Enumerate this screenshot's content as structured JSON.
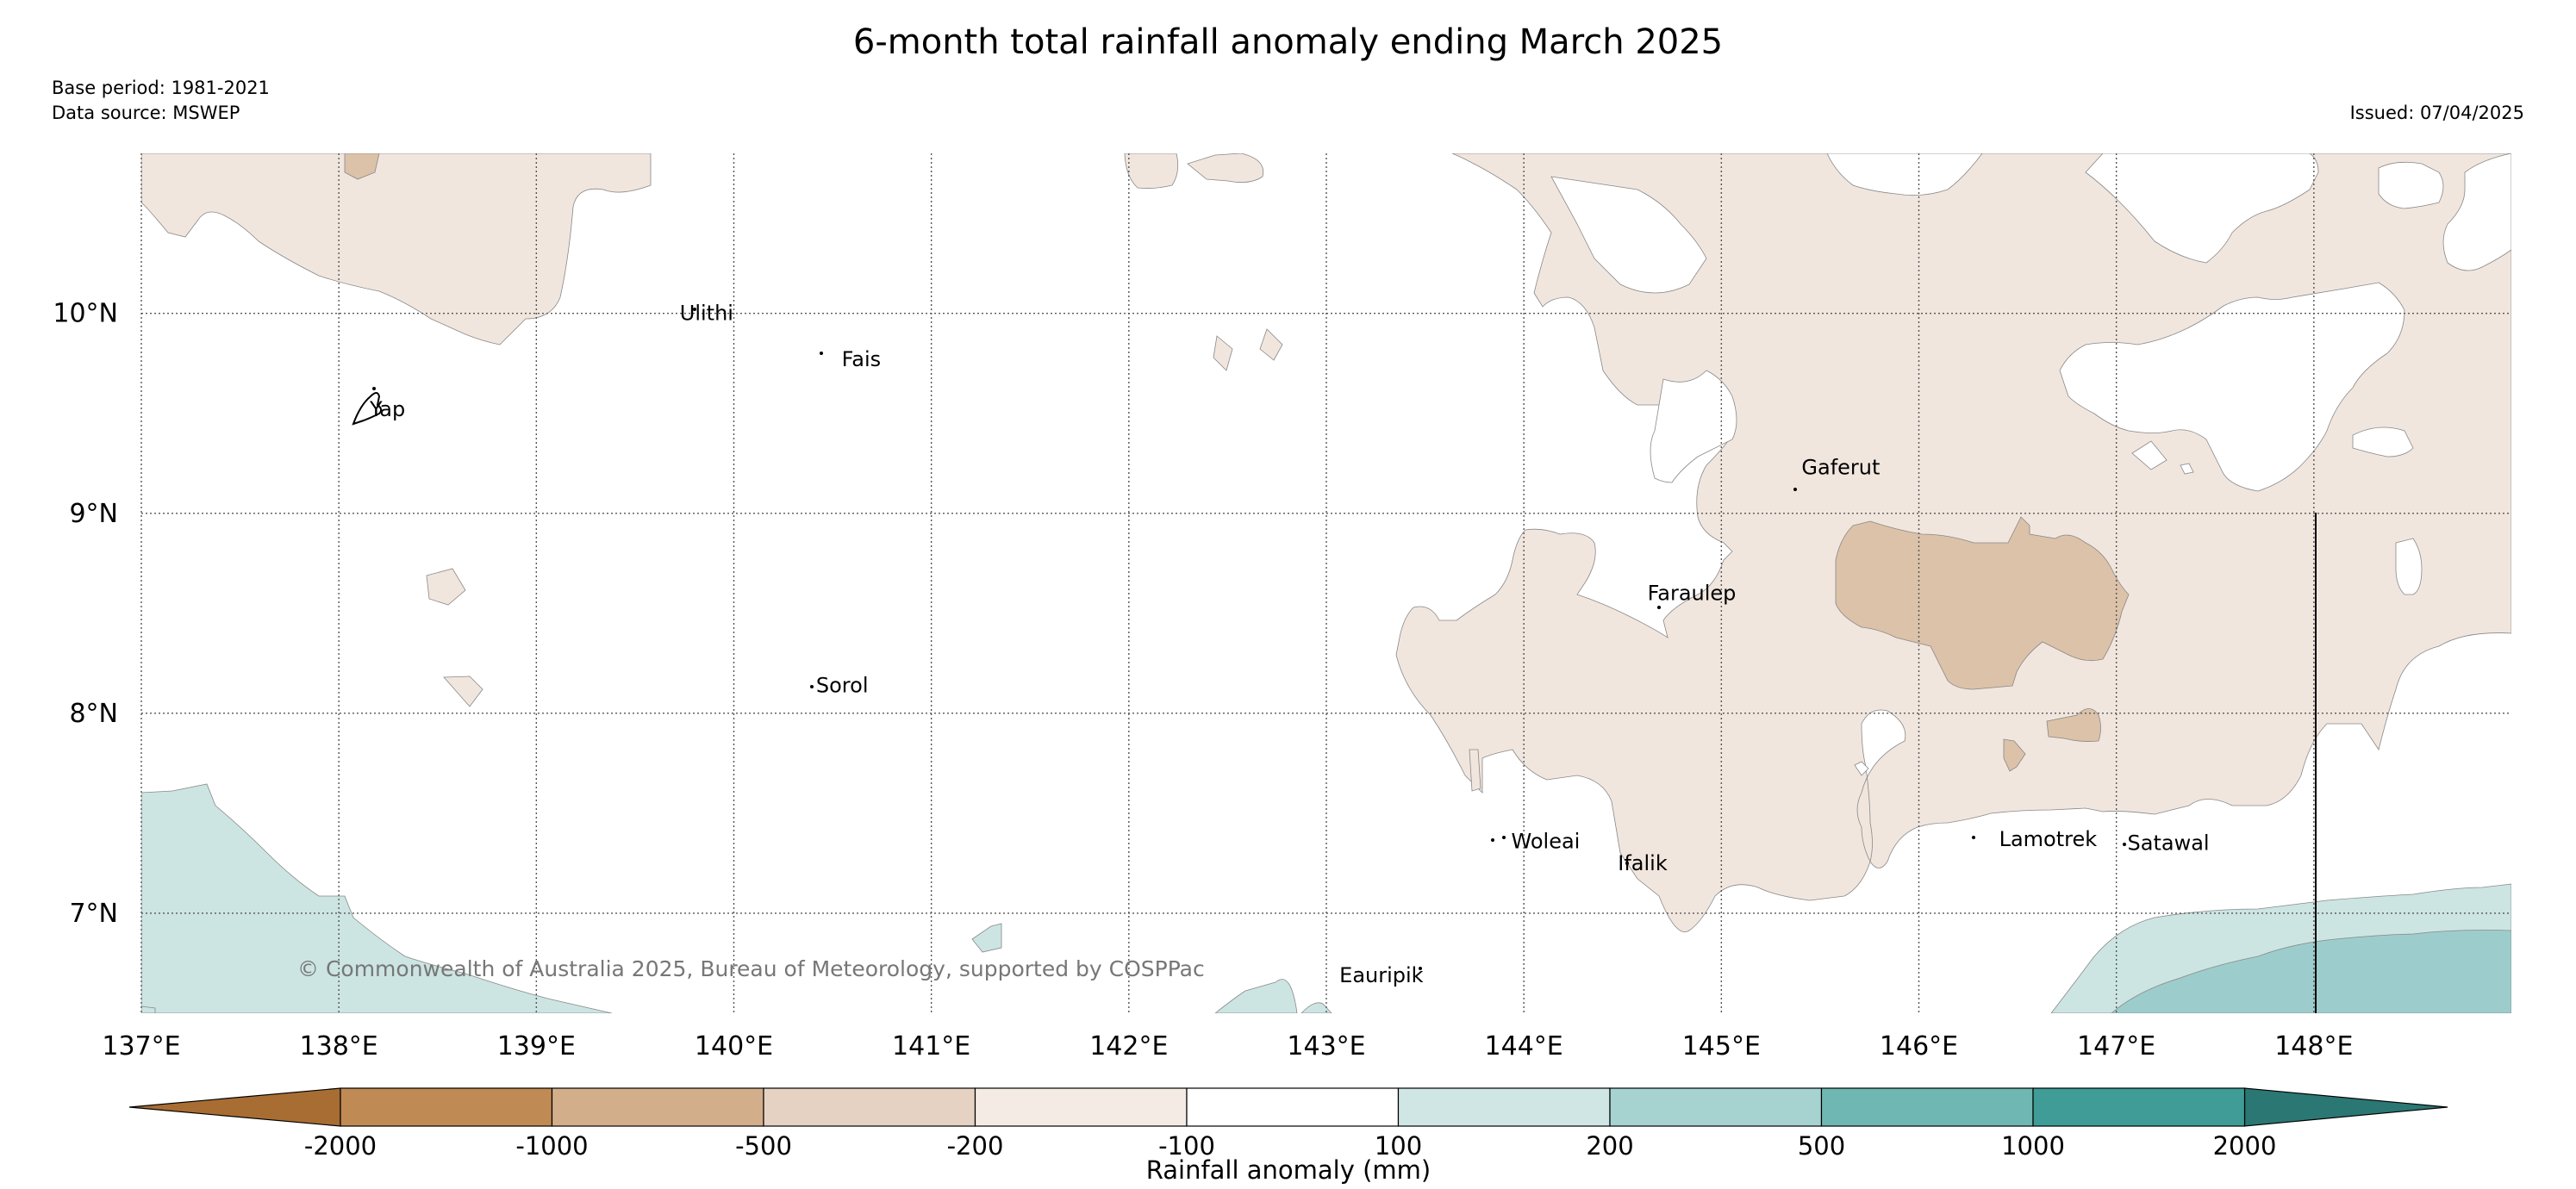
{
  "title": "6-month total rainfall anomaly ending March 2025",
  "base_period": "Base period: 1981-2021",
  "data_source": "Data source: MSWEP",
  "issued": "Issued: 07/04/2025",
  "copyright": "© Commonwealth of Australia 2025, Bureau of Meteorology, supported by COSPPac",
  "map": {
    "lon_range": [
      137.0,
      149.0
    ],
    "lat_range": [
      6.5,
      10.8
    ],
    "lon_ticks": [
      {
        "value": 137,
        "label": "137°E"
      },
      {
        "value": 138,
        "label": "138°E"
      },
      {
        "value": 139,
        "label": "139°E"
      },
      {
        "value": 140,
        "label": "140°E"
      },
      {
        "value": 141,
        "label": "141°E"
      },
      {
        "value": 142,
        "label": "142°E"
      },
      {
        "value": 143,
        "label": "143°E"
      },
      {
        "value": 144,
        "label": "144°E"
      },
      {
        "value": 145,
        "label": "145°E"
      },
      {
        "value": 146,
        "label": "146°E"
      },
      {
        "value": 147,
        "label": "147°E"
      },
      {
        "value": 148,
        "label": "148°E"
      }
    ],
    "lat_ticks": [
      {
        "value": 10,
        "label": "10°N"
      },
      {
        "value": 9,
        "label": "9°N"
      },
      {
        "value": 8,
        "label": "8°N"
      },
      {
        "value": 7,
        "label": "7°N"
      }
    ],
    "places": [
      {
        "name": "Ulithi",
        "lon": 139.7,
        "lat": 10.0
      },
      {
        "name": "Fais",
        "lon": 140.52,
        "lat": 9.77
      },
      {
        "name": "Yap",
        "lon": 138.13,
        "lat": 9.52
      },
      {
        "name": "Gaferut",
        "lon": 145.38,
        "lat": 9.23
      },
      {
        "name": "Faraulep",
        "lon": 144.6,
        "lat": 8.6
      },
      {
        "name": "Sorol",
        "lon": 140.39,
        "lat": 8.14
      },
      {
        "name": "Woleai",
        "lon": 143.91,
        "lat": 7.36
      },
      {
        "name": "Ifalik",
        "lon": 144.45,
        "lat": 7.25
      },
      {
        "name": "Lamotrek",
        "lon": 146.38,
        "lat": 7.37
      },
      {
        "name": "Satawal",
        "lon": 147.03,
        "lat": 7.35
      },
      {
        "name": "Eauripik",
        "lon": 143.04,
        "lat": 6.69
      }
    ]
  },
  "colorbar": {
    "label": "Rainfall anomaly (mm)",
    "bins": [
      {
        "label": "-2000",
        "color": "#a86d33"
      },
      {
        "label": "-1000",
        "color": "#c49a6d"
      },
      {
        "label": "-500",
        "color": "#dbc2a8"
      },
      {
        "label": "-200",
        "color": "#f1e6de"
      },
      {
        "label": "-100",
        "color": "#ffffff"
      },
      {
        "label": "100",
        "color": "#cce5e2"
      },
      {
        "label": "200",
        "color": "#9ccdcc"
      },
      {
        "label": "500",
        "color": "#64b1ad"
      },
      {
        "label": "1000",
        "color": "#389a94"
      },
      {
        "label": "2000",
        "color": "#257a74"
      }
    ],
    "under_color": "#a86d33",
    "over_color": "#2a7773"
  },
  "colors": {
    "dry_light": "#f1e6de",
    "dry_medium": "#dbc2a8",
    "wet_light": "#cce5e2",
    "wet_medium": "#9ccdcc"
  }
}
